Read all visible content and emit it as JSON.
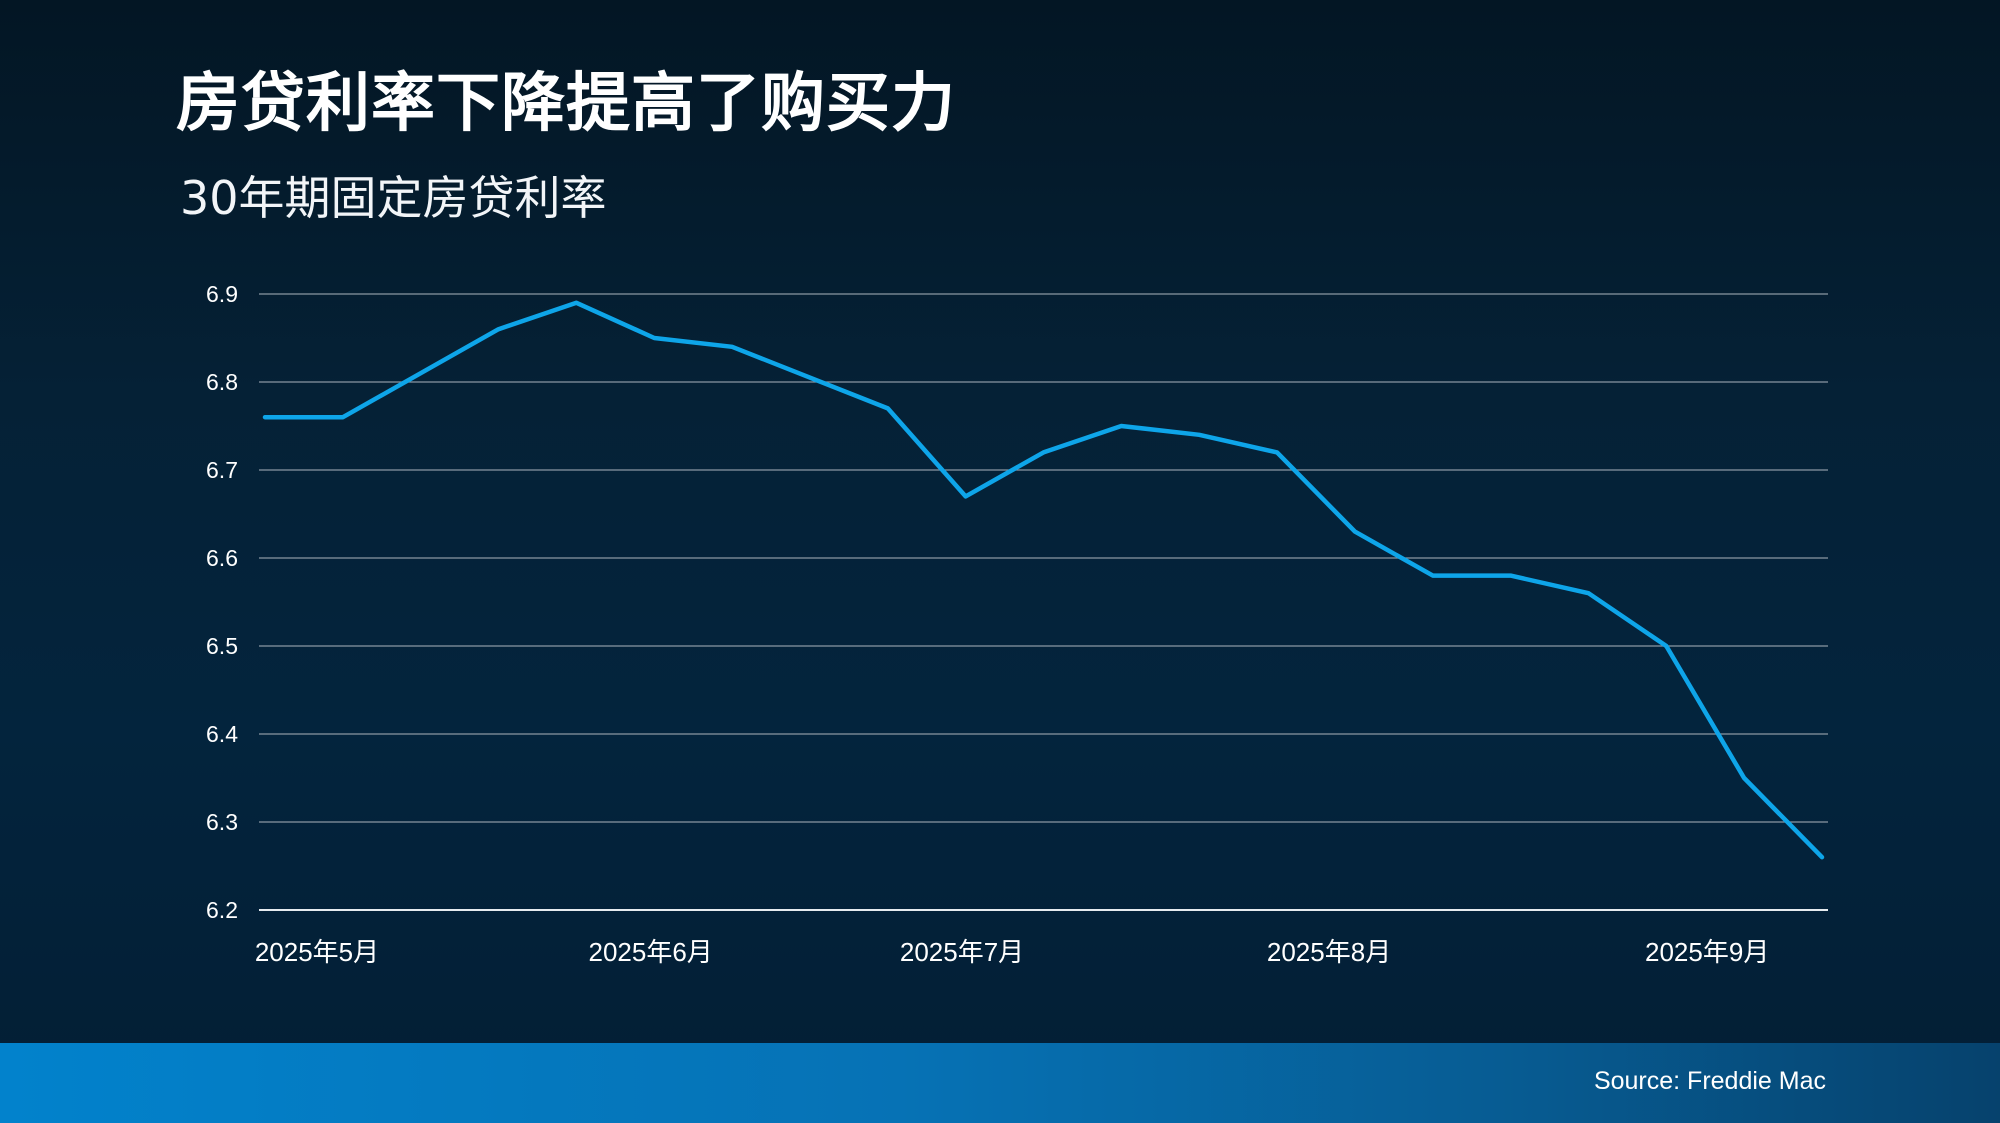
{
  "slide": {
    "title": "房贷利率下降提高了购买力",
    "subtitle": "30年期固定房贷利率",
    "source": "Source: Freddie Mac"
  },
  "colors": {
    "background": "#041d30",
    "line": "#0ea5e9",
    "grid": "#8a97a3",
    "footer_start": "#0282cc",
    "footer_end": "#06426d",
    "text": "#ffffff"
  },
  "chart_data": {
    "type": "line",
    "title": "30年期固定房贷利率",
    "xlabel": "",
    "ylabel": "",
    "ylim": [
      6.2,
      6.9
    ],
    "yticks": [
      6.2,
      6.3,
      6.4,
      6.5,
      6.6,
      6.7,
      6.8,
      6.9
    ],
    "ytick_labels": [
      "6.2",
      "6.3",
      "6.4",
      "6.5",
      "6.6",
      "6.7",
      "6.8",
      "6.9"
    ],
    "grid": true,
    "legend": "none",
    "x": [
      "2025-05-01",
      "2025-05-08",
      "2025-05-15",
      "2025-05-22",
      "2025-05-29",
      "2025-06-05",
      "2025-06-12",
      "2025-06-18",
      "2025-06-26",
      "2025-07-03",
      "2025-07-10",
      "2025-07-17",
      "2025-07-24",
      "2025-07-31",
      "2025-08-07",
      "2025-08-14",
      "2025-08-21",
      "2025-08-28",
      "2025-09-04",
      "2025-09-11",
      "2025-09-18"
    ],
    "xtick_labels": [
      {
        "label": "2025年5月",
        "x": "2025-05-01"
      },
      {
        "label": "2025年6月",
        "x": "2025-05-31"
      },
      {
        "label": "2025年7月",
        "x": "2025-06-28"
      },
      {
        "label": "2025年8月",
        "x": "2025-07-31"
      },
      {
        "label": "2025年9月",
        "x": "2025-09-03"
      }
    ],
    "series": [
      {
        "color": "#0ea5e9",
        "values": [
          6.76,
          6.76,
          6.81,
          6.86,
          6.89,
          6.85,
          6.84,
          6.81,
          6.77,
          6.67,
          6.72,
          6.75,
          6.74,
          6.72,
          6.63,
          6.58,
          6.58,
          6.56,
          6.5,
          6.35,
          6.26
        ]
      }
    ]
  }
}
